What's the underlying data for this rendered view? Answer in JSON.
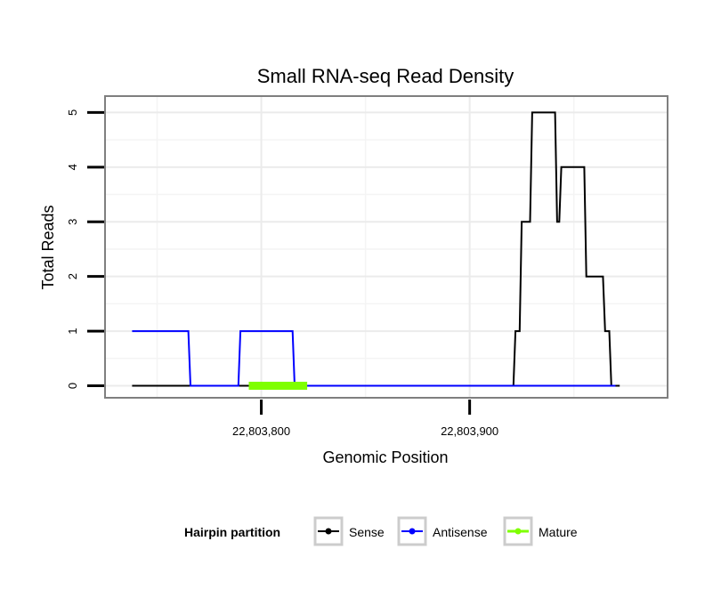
{
  "chart_data": {
    "type": "line",
    "title": "Small RNA-seq Read Density",
    "xlabel": "Genomic Position",
    "ylabel": "Total Reads",
    "xlim": [
      22803725,
      22803995
    ],
    "ylim": [
      -0.22,
      5.3
    ],
    "x_ticks": [
      {
        "value": 22803800,
        "label": "22,803,800"
      },
      {
        "value": 22803900,
        "label": "22,803,900"
      }
    ],
    "y_ticks": [
      {
        "value": 0,
        "label": "0"
      },
      {
        "value": 1,
        "label": "1"
      },
      {
        "value": 2,
        "label": "2"
      },
      {
        "value": 3,
        "label": "3"
      },
      {
        "value": 4,
        "label": "4"
      },
      {
        "value": 5,
        "label": "5"
      }
    ],
    "grid": true,
    "legend": {
      "title": "Hairpin partition",
      "position": "bottom",
      "entries": [
        "Sense",
        "Antisense",
        "Mature"
      ]
    },
    "series": [
      {
        "name": "Sense",
        "color": "#000000",
        "x": [
          22803738,
          22803921,
          22803922,
          22803924,
          22803925,
          22803929,
          22803930,
          22803941,
          22803942,
          22803943,
          22803944,
          22803955,
          22803956,
          22803964,
          22803965,
          22803967,
          22803968,
          22803972
        ],
        "values": [
          0,
          0,
          1,
          1,
          3,
          3,
          5,
          5,
          3,
          3,
          4,
          4,
          2,
          2,
          1,
          1,
          0,
          0
        ]
      },
      {
        "name": "Antisense",
        "color": "#0000ff",
        "x": [
          22803738,
          22803765,
          22803766,
          22803789,
          22803790,
          22803815,
          22803816,
          22803970
        ],
        "values": [
          1,
          1,
          0,
          0,
          1,
          1,
          0,
          0
        ]
      },
      {
        "name": "Mature",
        "color": "#7fff00",
        "x": [
          22803794,
          22803822
        ],
        "values": [
          0,
          0
        ]
      }
    ]
  }
}
